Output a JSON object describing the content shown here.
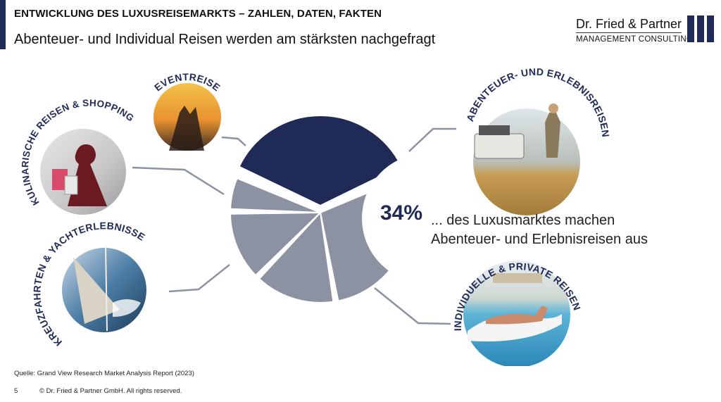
{
  "header": {
    "title": "ENTWICKLUNG DES LUXUSREISEMARKTS – ZAHLEN, DATEN, FAKTEN",
    "subtitle": "Abenteuer- und Individual Reisen werden am stärksten nachgefragt"
  },
  "logo": {
    "name": "Dr. Fried & Partner",
    "tagline": "MANAGEMENT CONSULTING",
    "color": "#1f2a57"
  },
  "chart_data": {
    "type": "pie",
    "title": "",
    "categories": [
      "ABENTEUER- UND ERLEBNISREISEN",
      "INDIVIDUELLE & PRIVATE REISEN",
      "KREUZFAHRTEN & YACHTERLEBNISSE",
      "KULINARISCHE REISEN & SHOPPING",
      "EVENTREISE"
    ],
    "values": [
      34,
      27,
      14,
      12,
      6
    ],
    "colors": [
      "#1f2a57",
      "#8d92a3",
      "#8d92a3",
      "#8d92a3",
      "#8d92a3"
    ],
    "highlight": {
      "category": "ABENTEUER- UND ERLEBNISREISEN",
      "value_label": "34%",
      "text_line1": "... des Luxusmarktes machen",
      "text_line2": "Abenteuer- und Erlebnisreisen aus"
    },
    "legend": "none"
  },
  "source": "Quelle: Grand View Research Market Analysis Report (2023)",
  "footer": {
    "page": "5",
    "copyright": "© Dr. Fried & Partner GmbH. All rights reserved."
  }
}
